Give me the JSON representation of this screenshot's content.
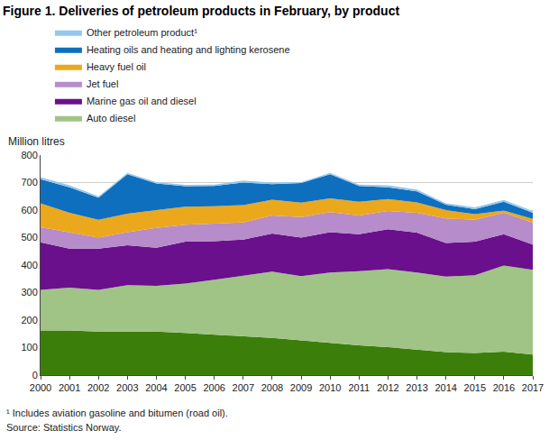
{
  "chart_data": {
    "type": "area",
    "stacked": true,
    "title": "Figure 1. Deliveries of petroleum products in February, by product",
    "y_label": "Million litres",
    "footnote": "¹ Includes aviation gasoline and bitumen (road oil).",
    "source": "Source: Statistics Norway.",
    "x": [
      2000,
      2001,
      2002,
      2003,
      2004,
      2005,
      2006,
      2007,
      2008,
      2009,
      2010,
      2011,
      2012,
      2013,
      2014,
      2015,
      2016,
      2017
    ],
    "xlim": [
      2000,
      2017
    ],
    "xticks": [
      2000,
      2001,
      2002,
      2003,
      2004,
      2005,
      2006,
      2007,
      2008,
      2009,
      2010,
      2011,
      2012,
      2013,
      2014,
      2015,
      2016,
      2017
    ],
    "ylim": [
      0,
      800
    ],
    "yticks": [
      0,
      100,
      200,
      300,
      400,
      500,
      600,
      700,
      800
    ],
    "grid": true,
    "legend": "top-left",
    "series": [
      {
        "name": null,
        "color": "#3b7f0a",
        "values": [
          162,
          162,
          158,
          158,
          158,
          153,
          147,
          140,
          135,
          126,
          117,
          108,
          102,
          93,
          84,
          80,
          85,
          75
        ]
      },
      {
        "name": "Auto diesel",
        "color": "#9fc486",
        "values": [
          148,
          156,
          152,
          169,
          167,
          180,
          200,
          222,
          241,
          234,
          256,
          270,
          283,
          280,
          274,
          283,
          313,
          308
        ]
      },
      {
        "name": "Marine gas oil and diesel",
        "color": "#6a108c",
        "values": [
          173,
          142,
          150,
          145,
          138,
          152,
          140,
          131,
          139,
          140,
          147,
          134,
          145,
          145,
          122,
          122,
          114,
          92
        ]
      },
      {
        "name": "Jet fuel",
        "color": "#b68ccb",
        "values": [
          55,
          60,
          40,
          48,
          72,
          62,
          63,
          62,
          65,
          75,
          73,
          68,
          67,
          72,
          90,
          80,
          78,
          80
        ]
      },
      {
        "name": "Heavy fuel oil",
        "color": "#eba81c",
        "values": [
          87,
          70,
          65,
          67,
          65,
          65,
          64,
          63,
          58,
          52,
          50,
          50,
          43,
          38,
          30,
          20,
          8,
          13
        ]
      },
      {
        "name": "Heating oils and heating and lighting kerosene",
        "color": "#0e6fbf",
        "values": [
          87,
          93,
          80,
          143,
          97,
          75,
          74,
          82,
          56,
          71,
          87,
          58,
          43,
          40,
          20,
          18,
          32,
          22
        ]
      },
      {
        "name": "Other petroleum product¹",
        "color": "#92c8ec",
        "values": [
          8,
          7,
          5,
          5,
          5,
          5,
          5,
          7,
          6,
          4,
          5,
          5,
          7,
          7,
          5,
          7,
          7,
          7
        ]
      }
    ]
  }
}
